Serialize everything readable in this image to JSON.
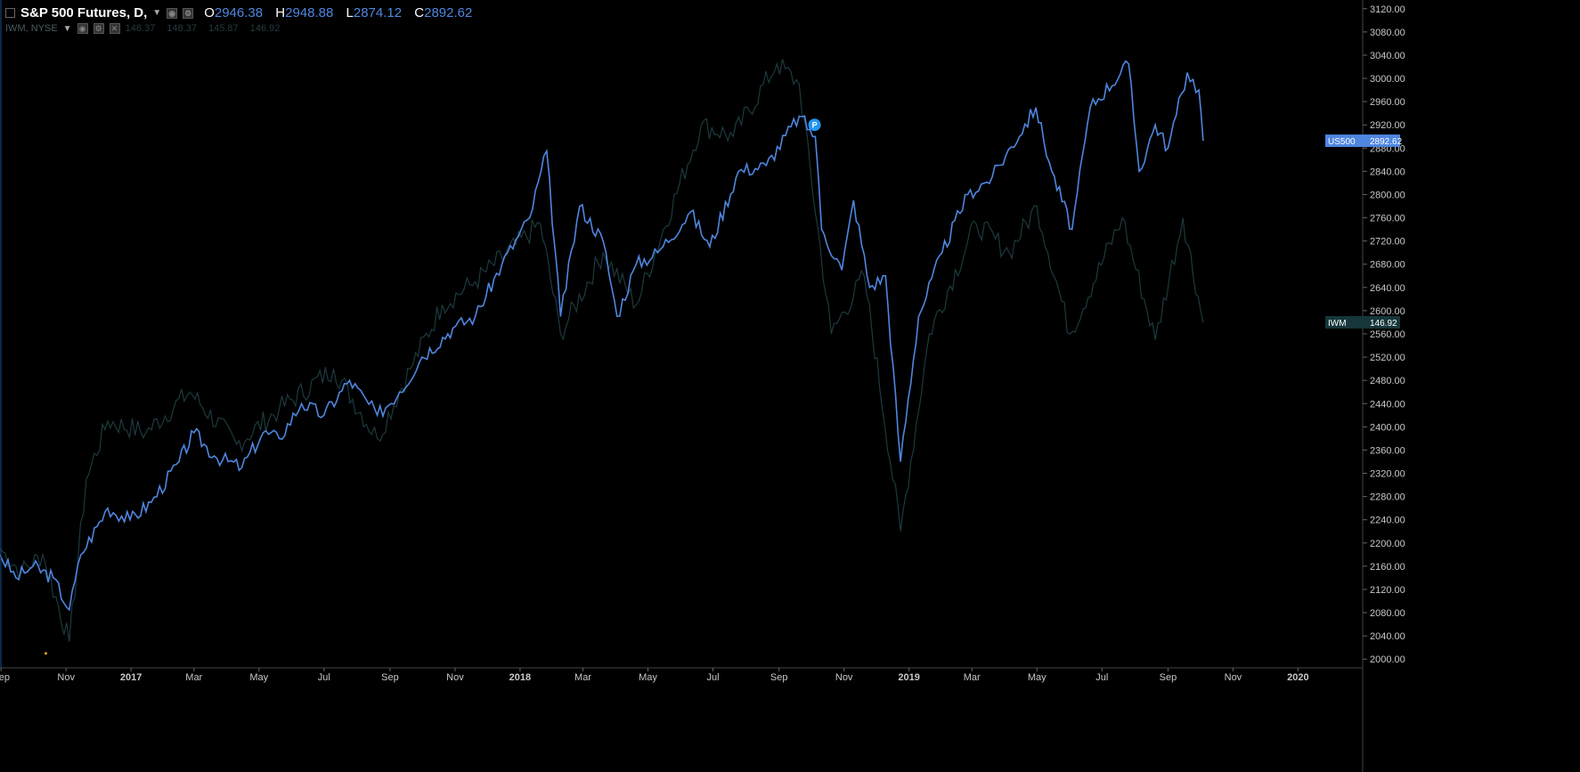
{
  "legend": {
    "main_title": "S&P 500 Futures, D,",
    "open_label": "O",
    "open": "2946.38",
    "high_label": "H",
    "high": "2948.88",
    "low_label": "L",
    "low": "2874.12",
    "close_label": "C",
    "close": "2892.62",
    "secondary_title": "IWM, NYSE",
    "secondary_values": [
      "148.37",
      "148.37",
      "145.87",
      "146.92"
    ]
  },
  "price_tags": {
    "us500": {
      "name": "US500",
      "value": "2892.62"
    },
    "iwm": {
      "name": "IWM",
      "value": "146.92"
    }
  },
  "marker_label": "P",
  "colors": {
    "background": "#000000",
    "us500": "#4f86e0",
    "iwm": "#1c3a3f",
    "axis_text": "#c8c8c8",
    "marker": "#2196f3"
  },
  "chart_data": {
    "type": "line",
    "x_ticks": [
      "Sep",
      "Nov",
      "2017",
      "Mar",
      "May",
      "Jul",
      "Sep",
      "Nov",
      "2018",
      "Mar",
      "May",
      "Jul",
      "Sep",
      "Nov",
      "2019",
      "Mar",
      "May",
      "Jul",
      "Sep",
      "Nov",
      "2020"
    ],
    "y_ticks": [
      "2000.00",
      "2040.00",
      "2080.00",
      "2120.00",
      "2160.00",
      "2200.00",
      "2240.00",
      "2280.00",
      "2320.00",
      "2360.00",
      "2400.00",
      "2440.00",
      "2480.00",
      "2520.00",
      "2560.00",
      "2600.00",
      "2640.00",
      "2680.00",
      "2720.00",
      "2760.00",
      "2800.00",
      "2840.00",
      "2880.00",
      "2920.00",
      "2960.00",
      "3000.00",
      "3040.00",
      "3080.00",
      "3120.00"
    ],
    "ylim": [
      1985,
      3135
    ],
    "xlim": [
      "2016-08-31",
      "2020-02-29"
    ],
    "series": [
      {
        "name": "US500",
        "points": [
          [
            "2016-08-31",
            2180
          ],
          [
            "2016-09-15",
            2140
          ],
          [
            "2016-10-01",
            2160
          ],
          [
            "2016-10-20",
            2140
          ],
          [
            "2016-11-04",
            2085
          ],
          [
            "2016-11-15",
            2180
          ],
          [
            "2016-12-10",
            2260
          ],
          [
            "2016-12-31",
            2240
          ],
          [
            "2017-01-20",
            2270
          ],
          [
            "2017-02-15",
            2340
          ],
          [
            "2017-03-01",
            2390
          ],
          [
            "2017-03-20",
            2350
          ],
          [
            "2017-04-15",
            2330
          ],
          [
            "2017-05-05",
            2390
          ],
          [
            "2017-05-20",
            2380
          ],
          [
            "2017-06-10",
            2440
          ],
          [
            "2017-07-01",
            2420
          ],
          [
            "2017-07-25",
            2480
          ],
          [
            "2017-08-20",
            2420
          ],
          [
            "2017-09-10",
            2460
          ],
          [
            "2017-10-01",
            2520
          ],
          [
            "2017-10-30",
            2570
          ],
          [
            "2017-11-20",
            2590
          ],
          [
            "2017-12-15",
            2680
          ],
          [
            "2018-01-10",
            2760
          ],
          [
            "2018-01-26",
            2875
          ],
          [
            "2018-02-08",
            2590
          ],
          [
            "2018-02-26",
            2780
          ],
          [
            "2018-03-20",
            2720
          ],
          [
            "2018-04-02",
            2590
          ],
          [
            "2018-04-20",
            2680
          ],
          [
            "2018-05-10",
            2700
          ],
          [
            "2018-06-10",
            2770
          ],
          [
            "2018-06-28",
            2710
          ],
          [
            "2018-07-25",
            2840
          ],
          [
            "2018-08-20",
            2850
          ],
          [
            "2018-09-20",
            2935
          ],
          [
            "2018-10-05",
            2900
          ],
          [
            "2018-10-11",
            2740
          ],
          [
            "2018-10-30",
            2670
          ],
          [
            "2018-11-10",
            2790
          ],
          [
            "2018-11-25",
            2640
          ],
          [
            "2018-12-10",
            2660
          ],
          [
            "2018-12-24",
            2340
          ],
          [
            "2019-01-10",
            2590
          ],
          [
            "2019-02-01",
            2700
          ],
          [
            "2019-02-25",
            2800
          ],
          [
            "2019-03-20",
            2830
          ],
          [
            "2019-04-30",
            2950
          ],
          [
            "2019-05-15",
            2840
          ],
          [
            "2019-06-03",
            2740
          ],
          [
            "2019-06-20",
            2950
          ],
          [
            "2019-07-26",
            3025
          ],
          [
            "2019-08-05",
            2840
          ],
          [
            "2019-08-20",
            2920
          ],
          [
            "2019-09-01",
            2880
          ],
          [
            "2019-09-19",
            3010
          ],
          [
            "2019-09-30",
            2980
          ],
          [
            "2019-10-04",
            2892.62
          ]
        ]
      },
      {
        "name": "IWM",
        "points": [
          [
            "2016-08-31",
            2190
          ],
          [
            "2016-09-20",
            2150
          ],
          [
            "2016-10-10",
            2180
          ],
          [
            "2016-11-04",
            2030
          ],
          [
            "2016-11-20",
            2310
          ],
          [
            "2016-12-10",
            2410
          ],
          [
            "2017-01-15",
            2390
          ],
          [
            "2017-02-25",
            2460
          ],
          [
            "2017-04-10",
            2370
          ],
          [
            "2017-05-20",
            2430
          ],
          [
            "2017-07-10",
            2500
          ],
          [
            "2017-08-20",
            2380
          ],
          [
            "2017-09-20",
            2500
          ],
          [
            "2017-10-20",
            2610
          ],
          [
            "2017-11-20",
            2650
          ],
          [
            "2018-01-20",
            2750
          ],
          [
            "2018-02-08",
            2560
          ],
          [
            "2018-03-20",
            2700
          ],
          [
            "2018-04-20",
            2610
          ],
          [
            "2018-06-20",
            2920
          ],
          [
            "2018-07-20",
            2900
          ],
          [
            "2018-08-30",
            3025
          ],
          [
            "2018-09-20",
            2990
          ],
          [
            "2018-10-20",
            2560
          ],
          [
            "2018-11-20",
            2660
          ],
          [
            "2018-12-24",
            2220
          ],
          [
            "2019-01-20",
            2560
          ],
          [
            "2019-03-05",
            2750
          ],
          [
            "2019-04-05",
            2700
          ],
          [
            "2019-05-01",
            2780
          ],
          [
            "2019-06-01",
            2560
          ],
          [
            "2019-07-20",
            2760
          ],
          [
            "2019-08-20",
            2550
          ],
          [
            "2019-09-15",
            2760
          ],
          [
            "2019-10-04",
            2580
          ]
        ]
      }
    ]
  }
}
